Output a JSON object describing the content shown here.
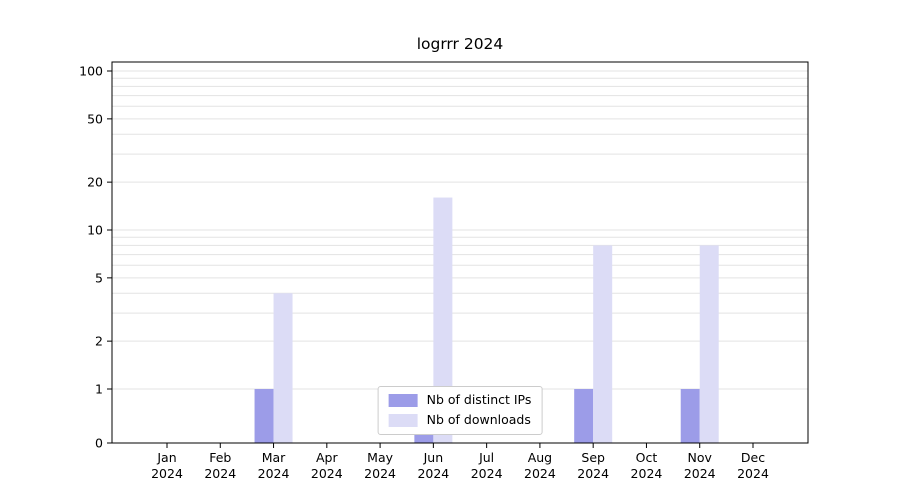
{
  "chart_data": {
    "type": "bar",
    "title": "logrrr 2024",
    "xlabel": "",
    "ylabel": "",
    "yscale": "symlog",
    "ylim": [
      0,
      100
    ],
    "yticks": [
      0,
      1,
      2,
      5,
      10,
      20,
      50,
      100
    ],
    "grid": true,
    "legend_position": "lower center",
    "categories": [
      "Jan 2024",
      "Feb 2024",
      "Mar 2024",
      "Apr 2024",
      "May 2024",
      "Jun 2024",
      "Jul 2024",
      "Aug 2024",
      "Sep 2024",
      "Oct 2024",
      "Nov 2024",
      "Dec 2024"
    ],
    "series": [
      {
        "name": "Nb of distinct IPs",
        "color": "#9c9ce8",
        "values": [
          0,
          0,
          1,
          0,
          0,
          1,
          0,
          0,
          1,
          0,
          1,
          0
        ]
      },
      {
        "name": "Nb of downloads",
        "color": "#dcdcf6",
        "values": [
          0,
          0,
          4,
          0,
          0,
          16,
          0,
          0,
          8,
          0,
          8,
          0
        ]
      }
    ]
  }
}
